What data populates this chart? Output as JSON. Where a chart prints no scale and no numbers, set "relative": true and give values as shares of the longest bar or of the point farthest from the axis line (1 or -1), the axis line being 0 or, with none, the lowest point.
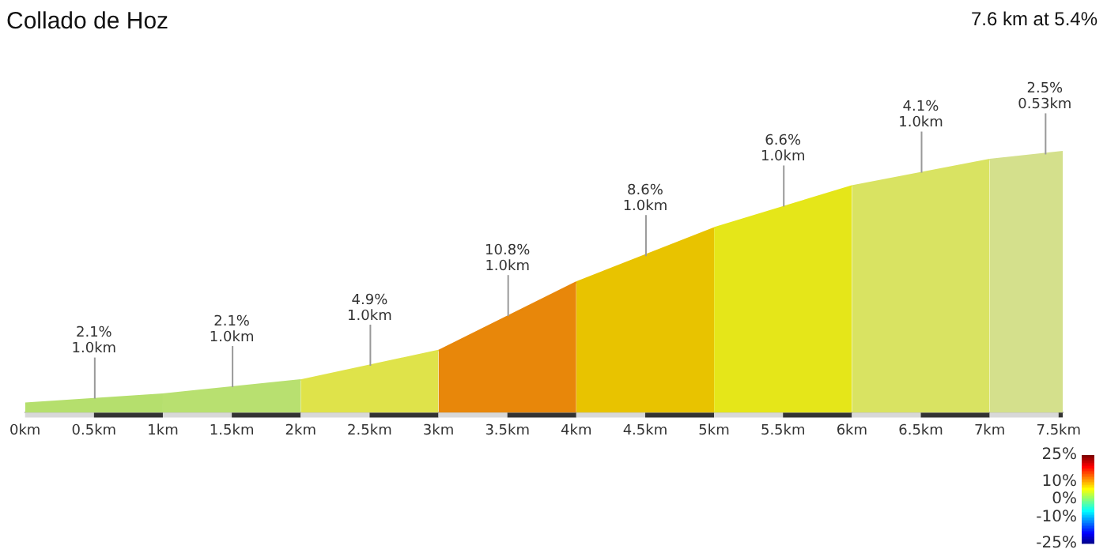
{
  "chart_data": {
    "type": "area",
    "title": "Collado de Hoz",
    "subtitle": "7.6 km at 5.4%",
    "relative": true,
    "series": [
      {
        "color": "#b5df6d",
        "x": [
          0,
          1
        ],
        "values": [
          0.036,
          0.071
        ]
      },
      {
        "color": "#b8e070",
        "x": [
          1,
          2
        ],
        "values": [
          0.071,
          0.125
        ]
      },
      {
        "color": "#dfe34a",
        "x": [
          2,
          3
        ],
        "values": [
          0.125,
          0.238
        ]
      },
      {
        "color": "#e8870a",
        "x": [
          3,
          4
        ],
        "values": [
          0.238,
          0.5
        ]
      },
      {
        "color": "#e8c300",
        "x": [
          4,
          5
        ],
        "values": [
          0.5,
          0.708
        ]
      },
      {
        "color": "#e5e619",
        "x": [
          5,
          6
        ],
        "values": [
          0.708,
          0.869
        ]
      },
      {
        "color": "#d9e362",
        "x": [
          6,
          7
        ],
        "values": [
          0.869,
          0.97
        ]
      },
      {
        "color": "#d4e08c",
        "x": [
          7,
          7.53
        ],
        "values": [
          0.97,
          1
        ]
      }
    ],
    "xlim": [
      0,
      7.53
    ],
    "xticks": [
      {
        "value": 0,
        "label": "0km"
      },
      {
        "value": 0.5,
        "label": "0.5km"
      },
      {
        "value": 1,
        "label": "1km"
      },
      {
        "value": 1.5,
        "label": "1.5km"
      },
      {
        "value": 2,
        "label": "2km"
      },
      {
        "value": 2.5,
        "label": "2.5km"
      },
      {
        "value": 3,
        "label": "3km"
      },
      {
        "value": 3.5,
        "label": "3.5km"
      },
      {
        "value": 4,
        "label": "4km"
      },
      {
        "value": 4.5,
        "label": "4.5km"
      },
      {
        "value": 5,
        "label": "5km"
      },
      {
        "value": 5.5,
        "label": "5.5km"
      },
      {
        "value": 6,
        "label": "6km"
      },
      {
        "value": 6.5,
        "label": "6.5km"
      },
      {
        "value": 7,
        "label": "7km"
      },
      {
        "value": 7.5,
        "label": "7.5km"
      }
    ],
    "annotations": [
      {
        "text": "2.1%\n1.0km",
        "x": 0.5,
        "y": 0.054
      },
      {
        "text": "2.1%\n1.0km",
        "x": 1.5,
        "y": 0.098
      },
      {
        "text": "4.9%\n1.0km",
        "x": 2.5,
        "y": 0.18
      },
      {
        "text": "10.8%\n1.0km",
        "x": 3.5,
        "y": 0.37
      },
      {
        "text": "8.6%\n1.0km",
        "x": 4.5,
        "y": 0.6
      },
      {
        "text": "6.6%\n1.0km",
        "x": 5.5,
        "y": 0.79
      },
      {
        "text": "4.1%\n1.0km",
        "x": 6.5,
        "y": 0.92
      },
      {
        "text": "2.5%\n0.53km",
        "x": 7.4,
        "y": 0.99
      }
    ],
    "clim": [
      -25,
      25
    ],
    "cticks": [
      {
        "value": 25,
        "label": "25%"
      },
      {
        "value": 10,
        "label": "10%"
      },
      {
        "value": 0,
        "label": "0%"
      },
      {
        "value": -10,
        "label": "-10%"
      },
      {
        "value": -25,
        "label": "-25%"
      }
    ],
    "grid": false,
    "legend": false
  }
}
